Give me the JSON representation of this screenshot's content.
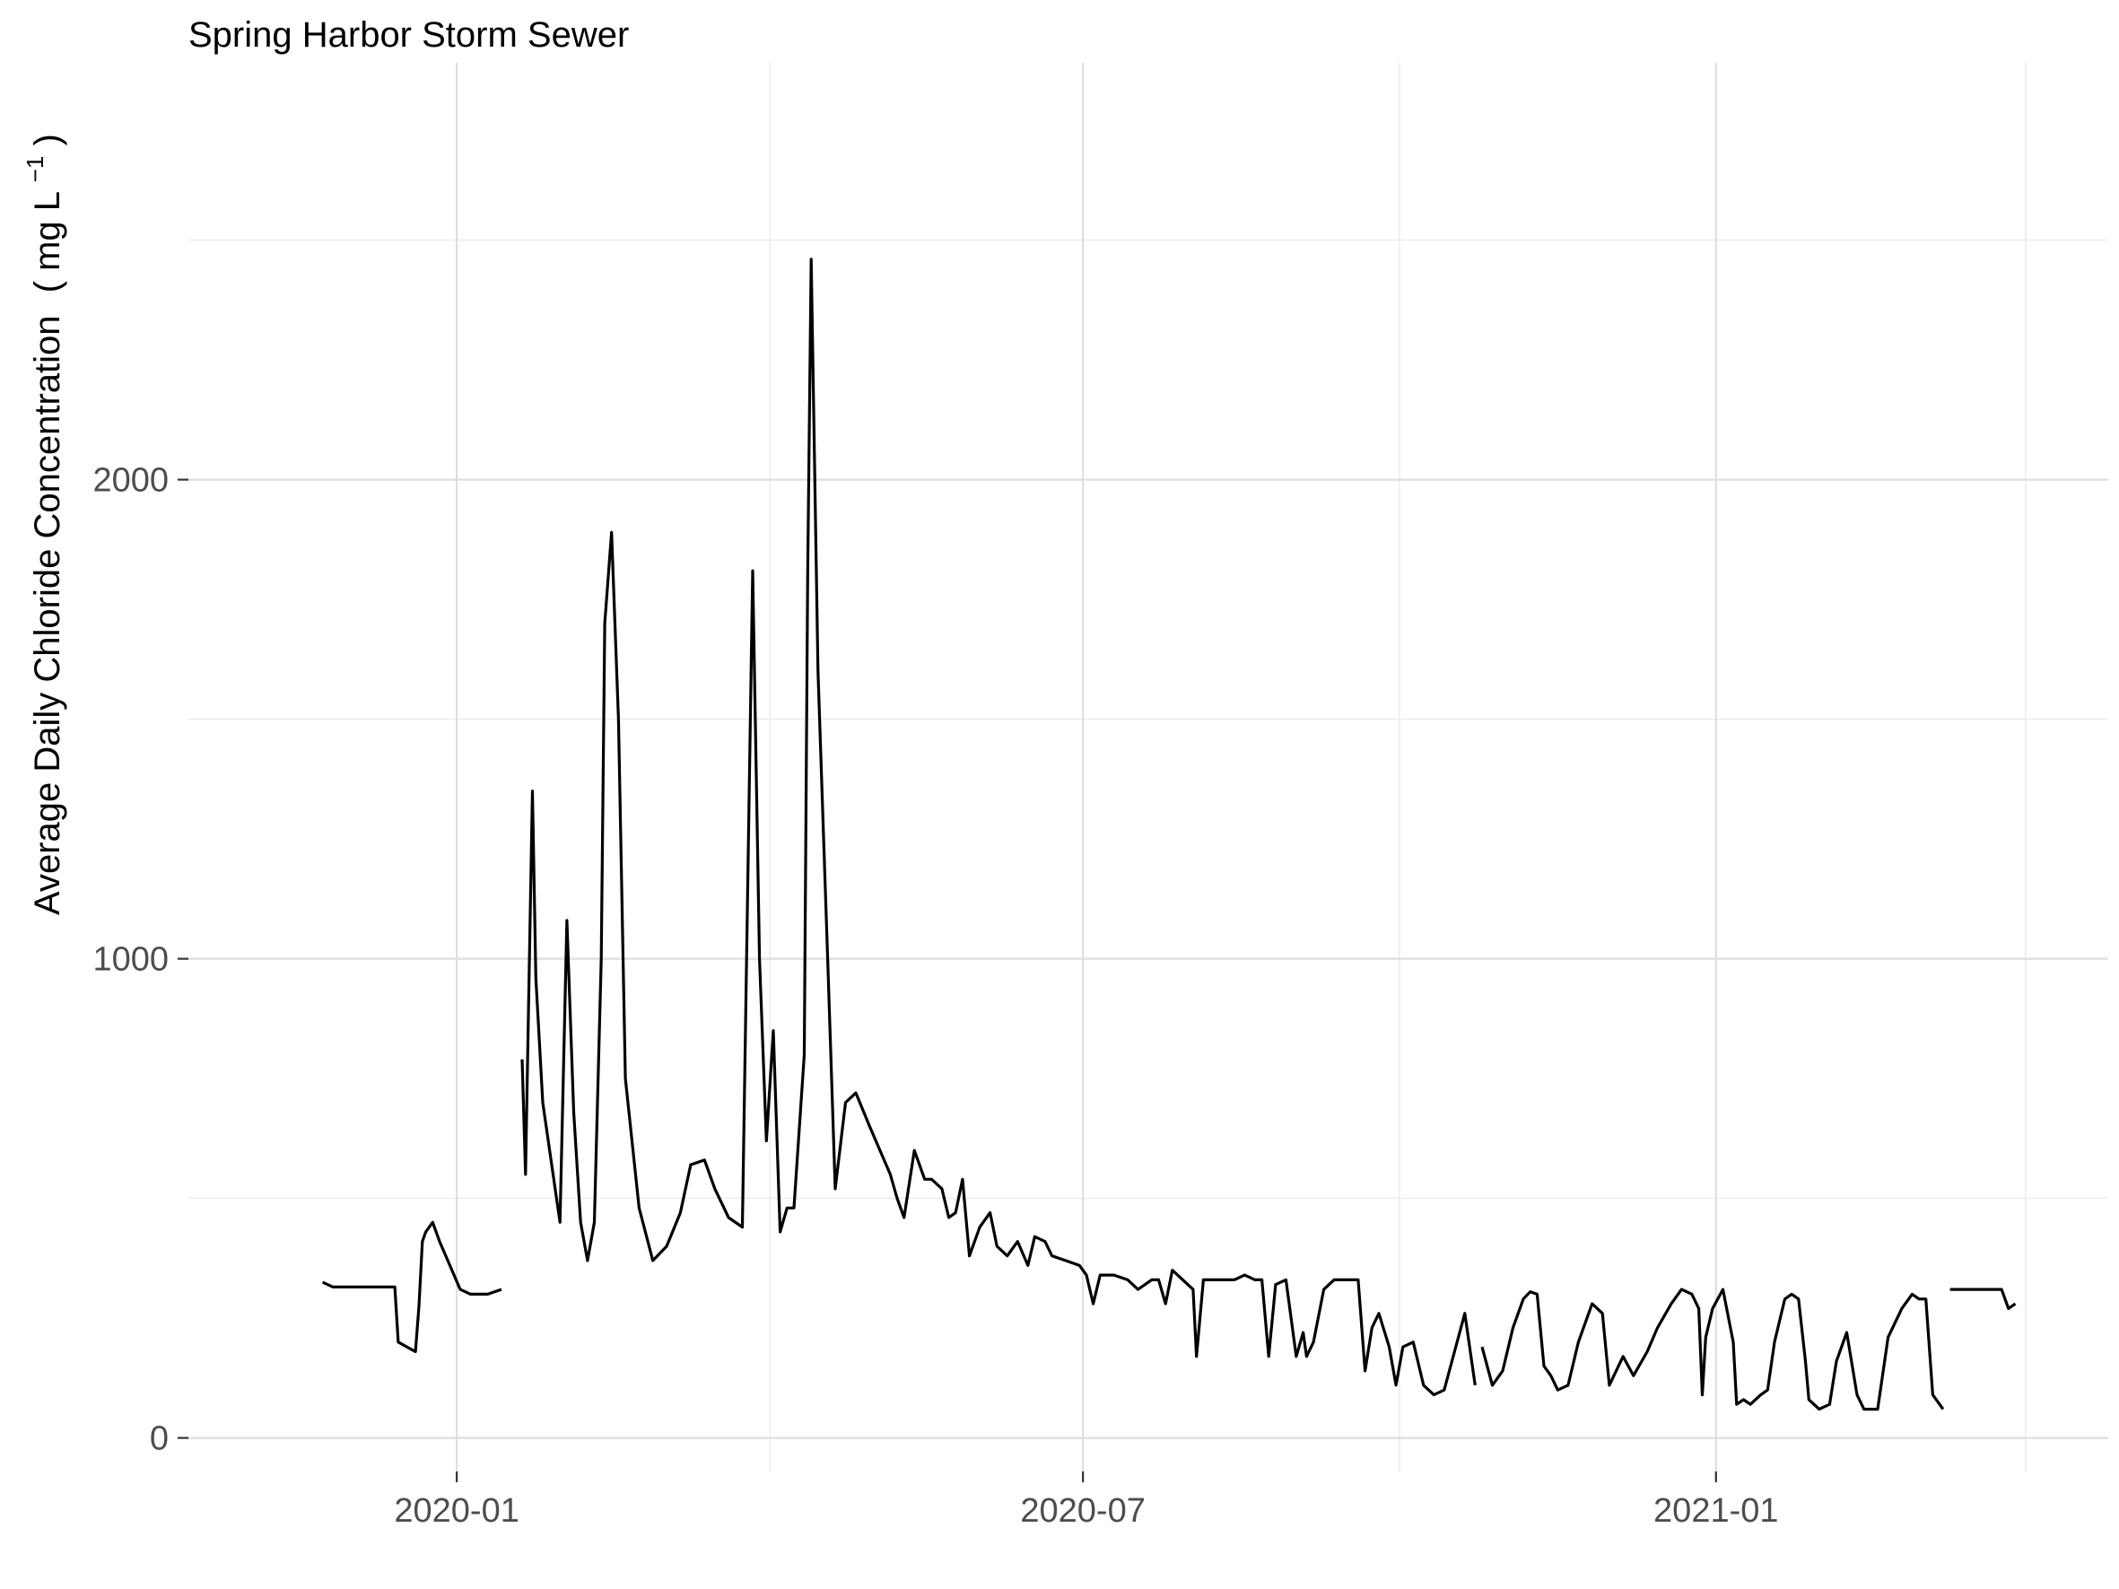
{
  "chart_data": {
    "type": "line",
    "title": "Spring Harbor Storm Sewer",
    "xlabel": "",
    "ylabel": "Average Daily Chloride Concentration",
    "ylabel_unit": {
      "open": "(",
      "base": "mg L",
      "superscript": "−1",
      "close": ")"
    },
    "x_range": [
      "2019-10-15",
      "2021-04-25"
    ],
    "y_range": [
      -70,
      2870
    ],
    "x_ticks": [
      {
        "date": "2020-01-01",
        "label": "2020-01"
      },
      {
        "date": "2020-07-01",
        "label": "2020-07"
      },
      {
        "date": "2021-01-01",
        "label": "2021-01"
      }
    ],
    "x_minor_ticks": [
      "2020-04-01",
      "2020-10-01",
      "2021-04-01"
    ],
    "y_ticks": [
      {
        "value": 0,
        "label": "0"
      },
      {
        "value": 1000,
        "label": "1000"
      },
      {
        "value": 2000,
        "label": "2000"
      }
    ],
    "y_minor_ticks": [
      500,
      1500,
      2500
    ],
    "grid": true,
    "series_segments": [
      [
        [
          "2019-11-23",
          325
        ],
        [
          "2019-11-26",
          315
        ],
        [
          "2019-12-10",
          315
        ],
        [
          "2019-12-14",
          315
        ],
        [
          "2019-12-15",
          200
        ],
        [
          "2019-12-20",
          180
        ],
        [
          "2019-12-21",
          275
        ],
        [
          "2019-12-22",
          410
        ],
        [
          "2019-12-23",
          430
        ],
        [
          "2019-12-25",
          450
        ],
        [
          "2019-12-27",
          410
        ],
        [
          "2019-12-30",
          360
        ],
        [
          "2020-01-02",
          310
        ],
        [
          "2020-01-05",
          300
        ],
        [
          "2020-01-10",
          300
        ],
        [
          "2020-01-14",
          310
        ]
      ],
      [
        [
          "2020-01-20",
          790
        ],
        [
          "2020-01-21",
          550
        ],
        [
          "2020-01-23",
          1350
        ],
        [
          "2020-01-24",
          960
        ],
        [
          "2020-01-26",
          700
        ],
        [
          "2020-01-29",
          550
        ],
        [
          "2020-01-31",
          450
        ],
        [
          "2020-02-02",
          1080
        ],
        [
          "2020-02-04",
          680
        ],
        [
          "2020-02-06",
          450
        ],
        [
          "2020-02-08",
          370
        ],
        [
          "2020-02-10",
          450
        ],
        [
          "2020-02-12",
          1000
        ],
        [
          "2020-02-13",
          1700
        ],
        [
          "2020-02-15",
          1890
        ],
        [
          "2020-02-17",
          1500
        ],
        [
          "2020-02-19",
          750
        ],
        [
          "2020-02-23",
          480
        ],
        [
          "2020-02-27",
          370
        ],
        [
          "2020-03-02",
          400
        ],
        [
          "2020-03-06",
          470
        ],
        [
          "2020-03-09",
          570
        ],
        [
          "2020-03-13",
          580
        ],
        [
          "2020-03-16",
          520
        ],
        [
          "2020-03-20",
          460
        ],
        [
          "2020-03-24",
          440
        ],
        [
          "2020-03-27",
          1810
        ],
        [
          "2020-03-29",
          1000
        ],
        [
          "2020-03-31",
          620
        ],
        [
          "2020-04-02",
          850
        ],
        [
          "2020-04-04",
          430
        ],
        [
          "2020-04-06",
          480
        ],
        [
          "2020-04-08",
          480
        ],
        [
          "2020-04-11",
          800
        ],
        [
          "2020-04-12",
          1800
        ],
        [
          "2020-04-13",
          2460
        ],
        [
          "2020-04-15",
          1600
        ],
        [
          "2020-04-18",
          960
        ],
        [
          "2020-04-20",
          520
        ],
        [
          "2020-04-23",
          700
        ],
        [
          "2020-04-26",
          720
        ],
        [
          "2020-04-30",
          650
        ],
        [
          "2020-05-03",
          600
        ],
        [
          "2020-05-06",
          550
        ],
        [
          "2020-05-08",
          500
        ],
        [
          "2020-05-10",
          460
        ],
        [
          "2020-05-13",
          600
        ],
        [
          "2020-05-16",
          540
        ],
        [
          "2020-05-18",
          540
        ],
        [
          "2020-05-21",
          520
        ],
        [
          "2020-05-23",
          460
        ],
        [
          "2020-05-25",
          470
        ],
        [
          "2020-05-27",
          540
        ],
        [
          "2020-05-29",
          380
        ],
        [
          "2020-06-01",
          440
        ],
        [
          "2020-06-04",
          470
        ],
        [
          "2020-06-06",
          400
        ],
        [
          "2020-06-09",
          380
        ],
        [
          "2020-06-12",
          410
        ],
        [
          "2020-06-15",
          360
        ],
        [
          "2020-06-17",
          420
        ],
        [
          "2020-06-20",
          410
        ],
        [
          "2020-06-22",
          380
        ],
        [
          "2020-06-26",
          370
        ],
        [
          "2020-06-30",
          360
        ],
        [
          "2020-07-02",
          340
        ],
        [
          "2020-07-04",
          280
        ],
        [
          "2020-07-06",
          340
        ],
        [
          "2020-07-10",
          340
        ],
        [
          "2020-07-14",
          330
        ],
        [
          "2020-07-17",
          310
        ],
        [
          "2020-07-21",
          330
        ],
        [
          "2020-07-23",
          330
        ],
        [
          "2020-07-25",
          280
        ],
        [
          "2020-07-27",
          350
        ],
        [
          "2020-07-30",
          330
        ],
        [
          "2020-08-02",
          310
        ],
        [
          "2020-08-03",
          170
        ],
        [
          "2020-08-05",
          330
        ],
        [
          "2020-08-09",
          330
        ],
        [
          "2020-08-14",
          330
        ],
        [
          "2020-08-17",
          340
        ],
        [
          "2020-08-20",
          330
        ],
        [
          "2020-08-22",
          330
        ],
        [
          "2020-08-24",
          170
        ],
        [
          "2020-08-26",
          320
        ],
        [
          "2020-08-29",
          330
        ],
        [
          "2020-09-01",
          170
        ],
        [
          "2020-09-03",
          220
        ],
        [
          "2020-09-04",
          170
        ],
        [
          "2020-09-06",
          200
        ],
        [
          "2020-09-09",
          310
        ],
        [
          "2020-09-12",
          330
        ],
        [
          "2020-09-15",
          330
        ],
        [
          "2020-09-19",
          330
        ],
        [
          "2020-09-21",
          140
        ],
        [
          "2020-09-23",
          230
        ],
        [
          "2020-09-25",
          260
        ],
        [
          "2020-09-28",
          190
        ],
        [
          "2020-09-30",
          110
        ],
        [
          "2020-10-02",
          190
        ],
        [
          "2020-10-05",
          200
        ],
        [
          "2020-10-08",
          110
        ],
        [
          "2020-10-11",
          90
        ],
        [
          "2020-10-14",
          100
        ],
        [
          "2020-10-17",
          180
        ],
        [
          "2020-10-20",
          260
        ],
        [
          "2020-10-23",
          110
        ]
      ]
    ],
    "series_segments_note": "",
    "series": [
      {
        "name": "",
        "points": []
      }
    ]
  }
}
